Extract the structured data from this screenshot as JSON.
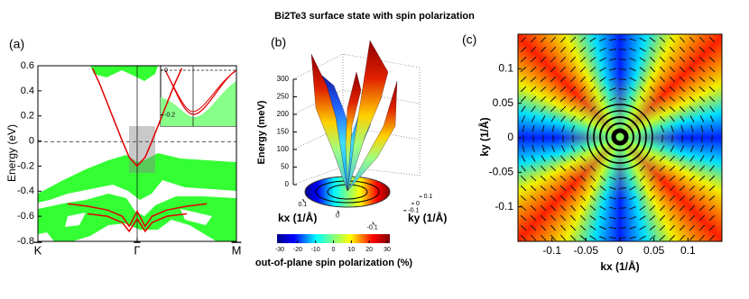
{
  "title": "Bi2Te3 surface state with spin polarization",
  "chart_data": [
    {
      "type": "line",
      "label": "(a)",
      "ylabel": "Energy (eV)",
      "xlim": [
        -1,
        1
      ],
      "ylim": [
        -0.8,
        0.6
      ],
      "yticks": [
        -0.8,
        -0.6,
        -0.4,
        -0.2,
        0,
        0.2,
        0.4,
        0.6
      ],
      "xticks": [
        {
          "value": -1,
          "label": "K"
        },
        {
          "value": 0,
          "label": "Γ"
        },
        {
          "value": 1,
          "label": "M"
        }
      ],
      "series": [
        {
          "color": "#e00000",
          "x": [
            -0.45,
            -0.38,
            -0.3,
            -0.22,
            -0.15,
            -0.08,
            0,
            0.08,
            0.15,
            0.22,
            0.3,
            0.38,
            0.45
          ],
          "values": [
            0.58,
            0.46,
            0.3,
            0.14,
            0.0,
            -0.13,
            -0.2,
            -0.13,
            0.0,
            0.14,
            0.3,
            0.46,
            0.58
          ]
        },
        {
          "color": "#e00000",
          "x": [
            -0.7,
            -0.5,
            -0.3,
            -0.15,
            -0.08,
            0,
            0.08,
            0.15,
            0.3,
            0.5,
            0.7
          ],
          "values": [
            -0.5,
            -0.52,
            -0.55,
            -0.6,
            -0.68,
            -0.56,
            -0.68,
            -0.6,
            -0.55,
            -0.52,
            -0.5
          ]
        },
        {
          "color": "#e00000",
          "x": [
            -0.5,
            -0.3,
            -0.15,
            -0.08,
            0,
            0.08,
            0.15,
            0.3,
            0.5
          ],
          "values": [
            -0.58,
            -0.6,
            -0.65,
            -0.72,
            -0.62,
            -0.72,
            -0.65,
            -0.6,
            -0.58
          ]
        }
      ],
      "inset": {
        "ylim": [
          -0.25,
          0.02
        ],
        "yticks": [
          0,
          -0.2
        ]
      }
    },
    {
      "type": "surface",
      "label": "(b)",
      "zlabel": "Energy (meV)",
      "zlim": [
        0,
        300
      ],
      "zticks": [
        0,
        50,
        100,
        150,
        200,
        250,
        300
      ],
      "xlabel": "kx (1/Å)",
      "xlim": [
        -0.15,
        0.15
      ],
      "xticks": [
        0.1,
        0,
        -0.1
      ],
      "ylabel": "ky (1/Å)",
      "ylim": [
        -0.15,
        0.15
      ],
      "yticks": [
        0.1,
        0,
        -0.1
      ],
      "colorbar": {
        "label": "out-of-plane spin polarization (%)",
        "lim": [
          -30,
          30
        ],
        "ticks": [
          -30,
          -20,
          -10,
          0,
          10,
          20,
          30
        ]
      }
    },
    {
      "type": "heatmap",
      "label": "(c)",
      "xlabel": "kx (1/Å)",
      "ylabel": "ky (1/Å)",
      "xlim": [
        -0.15,
        0.15
      ],
      "ylim": [
        -0.15,
        0.15
      ],
      "xticks": [
        -0.1,
        -0.05,
        0,
        0.05,
        0.1
      ],
      "yticks": [
        -0.1,
        -0.05,
        0,
        0.05,
        0.1
      ]
    }
  ]
}
